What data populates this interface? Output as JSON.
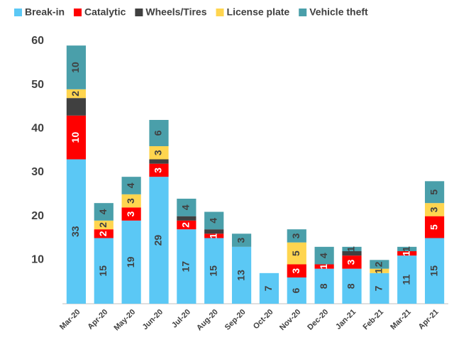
{
  "chart_data": {
    "type": "stacked_bar",
    "categories": [
      "Mar-20",
      "Apr-20",
      "May-20",
      "Jun-20",
      "Jul-20",
      "Aug-20",
      "Sep-20",
      "Oct-20",
      "Nov-20",
      "Dec-20",
      "Jan-21",
      "Feb-21",
      "Mar-21",
      "Apr-21"
    ],
    "series": [
      {
        "name": "Break-in",
        "color": "#5bc8f5",
        "show_labels": true,
        "values": [
          33,
          15,
          19,
          29,
          17,
          15,
          13,
          7,
          6,
          8,
          8,
          7,
          11,
          15
        ]
      },
      {
        "name": "Catalytic",
        "color": "#ff0000",
        "show_labels": true,
        "values": [
          10,
          2,
          3,
          3,
          2,
          1,
          0,
          0,
          3,
          1,
          3,
          0,
          1,
          5
        ]
      },
      {
        "name": "Wheels/Tires",
        "color": "#404040",
        "show_labels": false,
        "values": [
          4,
          0,
          0,
          1,
          1,
          1,
          0,
          0,
          0,
          0,
          1,
          0,
          0,
          0
        ]
      },
      {
        "name": "License plate",
        "color": "#ffd54f",
        "show_labels": true,
        "values": [
          2,
          2,
          3,
          3,
          0,
          0,
          0,
          0,
          5,
          0,
          0,
          1,
          0,
          3
        ]
      },
      {
        "name": "Vehicle theft",
        "color": "#4a9faa",
        "show_labels": true,
        "values": [
          10,
          4,
          4,
          6,
          4,
          4,
          3,
          0,
          3,
          4,
          1,
          2,
          1,
          5
        ]
      }
    ],
    "ylim": [
      0,
      60
    ],
    "yticks": [
      10,
      20,
      30,
      40,
      50,
      60
    ],
    "grid": false,
    "legend": "top"
  }
}
